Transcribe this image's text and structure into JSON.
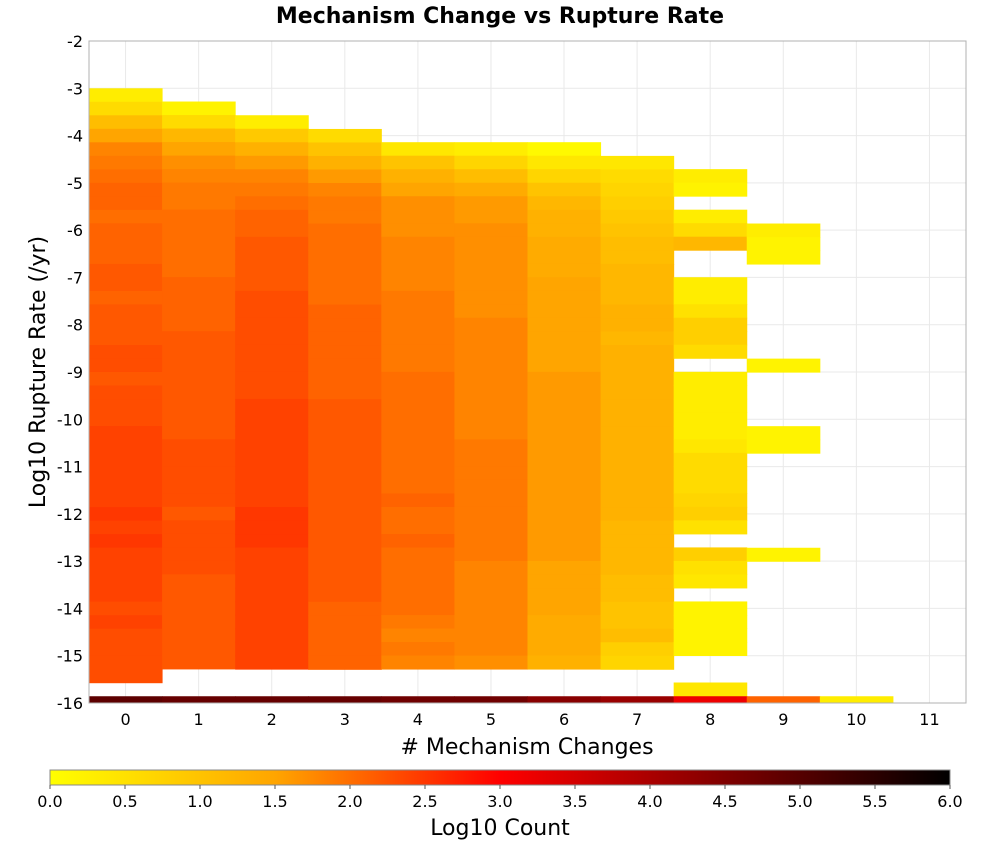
{
  "chart_data": {
    "type": "heatmap",
    "title": "Mechanism Change vs Rupture Rate",
    "xlabel": "# Mechanism Changes",
    "ylabel": "Log10 Rupture Rate (/yr)",
    "xlim": [
      -0.5,
      11.5
    ],
    "ylim": [
      -16,
      -2
    ],
    "x_ticks": [
      0,
      1,
      2,
      3,
      4,
      5,
      6,
      7,
      8,
      9,
      10,
      11
    ],
    "y_ticks": [
      -2,
      -3,
      -4,
      -5,
      -6,
      -7,
      -8,
      -9,
      -10,
      -11,
      -12,
      -13,
      -14,
      -15,
      -16
    ],
    "bin_height": 0.2857,
    "grid": true,
    "colorbar": {
      "label": "Log10 Count",
      "range": [
        0,
        6
      ],
      "ticks": [
        "0.0",
        "0.5",
        "1.0",
        "1.5",
        "2.0",
        "2.5",
        "3.0",
        "3.5",
        "4.0",
        "4.5",
        "5.0",
        "5.5",
        "6.0"
      ],
      "colors": [
        "#ffff00",
        "#ffa500",
        "#ff0000",
        "#000000"
      ]
    },
    "columns": [
      {
        "x": 0,
        "y_top": -3.0,
        "values": [
          0.3,
          0.6,
          1.1,
          1.5,
          1.8,
          1.9,
          2.0,
          2.1,
          2.1,
          2.0,
          2.1,
          2.1,
          2.1,
          2.2,
          2.2,
          2.1,
          2.2,
          2.2,
          2.2,
          2.3,
          2.3,
          2.2,
          2.3,
          2.3,
          2.3,
          2.4,
          2.4,
          2.4,
          2.4,
          2.4,
          2.4,
          2.5,
          2.4,
          2.5,
          2.4,
          2.4,
          2.4,
          2.4,
          2.3,
          2.4,
          2.3,
          2.3,
          2.3,
          2.3
        ],
        "tail": 4.9
      },
      {
        "x": 1,
        "y_top": -3.28,
        "values": [
          0.2,
          0.6,
          1.2,
          1.5,
          1.7,
          1.8,
          1.9,
          1.9,
          2.0,
          2.0,
          2.0,
          2.0,
          2.0,
          2.1,
          2.1,
          2.1,
          2.1,
          2.2,
          2.2,
          2.2,
          2.2,
          2.2,
          2.2,
          2.2,
          2.2,
          2.3,
          2.3,
          2.3,
          2.3,
          2.3,
          2.2,
          2.3,
          2.3,
          2.3,
          2.3,
          2.2,
          2.2,
          2.2,
          2.2,
          2.2,
          2.2,
          2.2
        ],
        "tail": 4.8
      },
      {
        "x": 2,
        "y_top": -3.57,
        "values": [
          0.3,
          0.9,
          1.3,
          1.6,
          1.8,
          1.9,
          2.0,
          2.1,
          2.1,
          2.2,
          2.2,
          2.2,
          2.2,
          2.3,
          2.3,
          2.3,
          2.3,
          2.3,
          2.3,
          2.3,
          2.3,
          2.4,
          2.4,
          2.4,
          2.4,
          2.4,
          2.4,
          2.4,
          2.4,
          2.5,
          2.5,
          2.5,
          2.4,
          2.4,
          2.4,
          2.4,
          2.4,
          2.4,
          2.4,
          2.4,
          2.4
        ],
        "tail": 4.8
      },
      {
        "x": 3,
        "y_top": -3.86,
        "values": [
          0.6,
          1.0,
          1.3,
          1.6,
          1.8,
          1.9,
          1.9,
          2.0,
          2.0,
          2.0,
          2.0,
          2.0,
          2.0,
          2.1,
          2.1,
          2.1,
          2.1,
          2.1,
          2.1,
          2.1,
          2.2,
          2.2,
          2.2,
          2.2,
          2.2,
          2.2,
          2.2,
          2.2,
          2.2,
          2.2,
          2.2,
          2.2,
          2.2,
          2.2,
          2.2,
          2.1,
          2.1,
          2.1,
          2.1,
          2.1
        ],
        "tail": 4.8
      },
      {
        "x": 4,
        "y_top": -4.14,
        "values": [
          0.4,
          1.0,
          1.3,
          1.5,
          1.7,
          1.7,
          1.7,
          1.8,
          1.8,
          1.8,
          1.8,
          1.9,
          1.9,
          1.9,
          1.9,
          1.9,
          1.9,
          2.0,
          2.0,
          2.0,
          2.0,
          2.0,
          2.0,
          2.0,
          2.0,
          2.0,
          2.1,
          2.0,
          2.0,
          2.1,
          2.0,
          2.0,
          2.0,
          2.0,
          2.0,
          1.9,
          1.8,
          1.9,
          1.8
        ],
        "tail": 4.7
      },
      {
        "x": 5,
        "y_top": -4.14,
        "values": [
          0.3,
          0.7,
          1.1,
          1.4,
          1.6,
          1.6,
          1.7,
          1.7,
          1.7,
          1.7,
          1.7,
          1.7,
          1.7,
          1.8,
          1.8,
          1.8,
          1.8,
          1.8,
          1.8,
          1.8,
          1.8,
          1.8,
          1.9,
          1.9,
          1.9,
          1.9,
          1.9,
          1.9,
          1.9,
          1.9,
          1.9,
          1.8,
          1.8,
          1.8,
          1.8,
          1.8,
          1.8,
          1.8,
          1.7
        ],
        "tail": 4.7
      },
      {
        "x": 6,
        "y_top": -4.14,
        "values": [
          0.1,
          0.4,
          0.7,
          1.0,
          1.2,
          1.3,
          1.3,
          1.4,
          1.4,
          1.4,
          1.5,
          1.5,
          1.5,
          1.5,
          1.5,
          1.5,
          1.5,
          1.6,
          1.6,
          1.6,
          1.6,
          1.6,
          1.6,
          1.6,
          1.6,
          1.6,
          1.6,
          1.6,
          1.6,
          1.6,
          1.6,
          1.5,
          1.5,
          1.5,
          1.5,
          1.4,
          1.4,
          1.4,
          1.3
        ],
        "tail": 4.4
      },
      {
        "x": 7,
        "y_top": -4.43,
        "values": [
          0.4,
          0.6,
          0.7,
          0.8,
          0.9,
          1.0,
          1.1,
          1.1,
          1.2,
          1.2,
          1.2,
          1.3,
          1.3,
          1.2,
          1.3,
          1.3,
          1.3,
          1.3,
          1.3,
          1.3,
          1.3,
          1.3,
          1.3,
          1.3,
          1.3,
          1.3,
          1.3,
          1.2,
          1.2,
          1.2,
          1.2,
          1.1,
          1.1,
          1.0,
          1.0,
          1.1,
          0.8,
          0.7
        ],
        "tail": 4.2
      },
      {
        "x": 8,
        "y_top": -4.71,
        "values": [
          0.3,
          0.2,
          null,
          0.3,
          0.6,
          1.2,
          null,
          null,
          0.3,
          0.3,
          0.5,
          0.8,
          0.8,
          0.6,
          null,
          0.3,
          0.3,
          0.3,
          0.3,
          0.3,
          0.4,
          0.6,
          0.6,
          0.6,
          0.7,
          0.8,
          0.5,
          null,
          0.8,
          0.5,
          0.4,
          null,
          0.2,
          0.2,
          0.2,
          0.2,
          null,
          null,
          0.4,
          0.4
        ],
        "tail": 3.2
      },
      {
        "x": 9,
        "y_top": -5.86,
        "values": [
          0.3,
          0.2,
          0.2,
          null,
          null,
          null,
          null,
          null,
          null,
          null,
          0.2,
          null,
          null,
          null,
          null,
          0.2,
          0.2,
          null,
          null,
          null,
          null,
          null,
          null,
          null,
          0.2,
          null,
          null,
          null,
          null,
          null,
          null,
          null,
          null,
          null,
          null
        ],
        "tail": 2.1
      },
      {
        "x": 10,
        "y_top": -15.86,
        "values": [],
        "tail": 0.3
      }
    ]
  }
}
